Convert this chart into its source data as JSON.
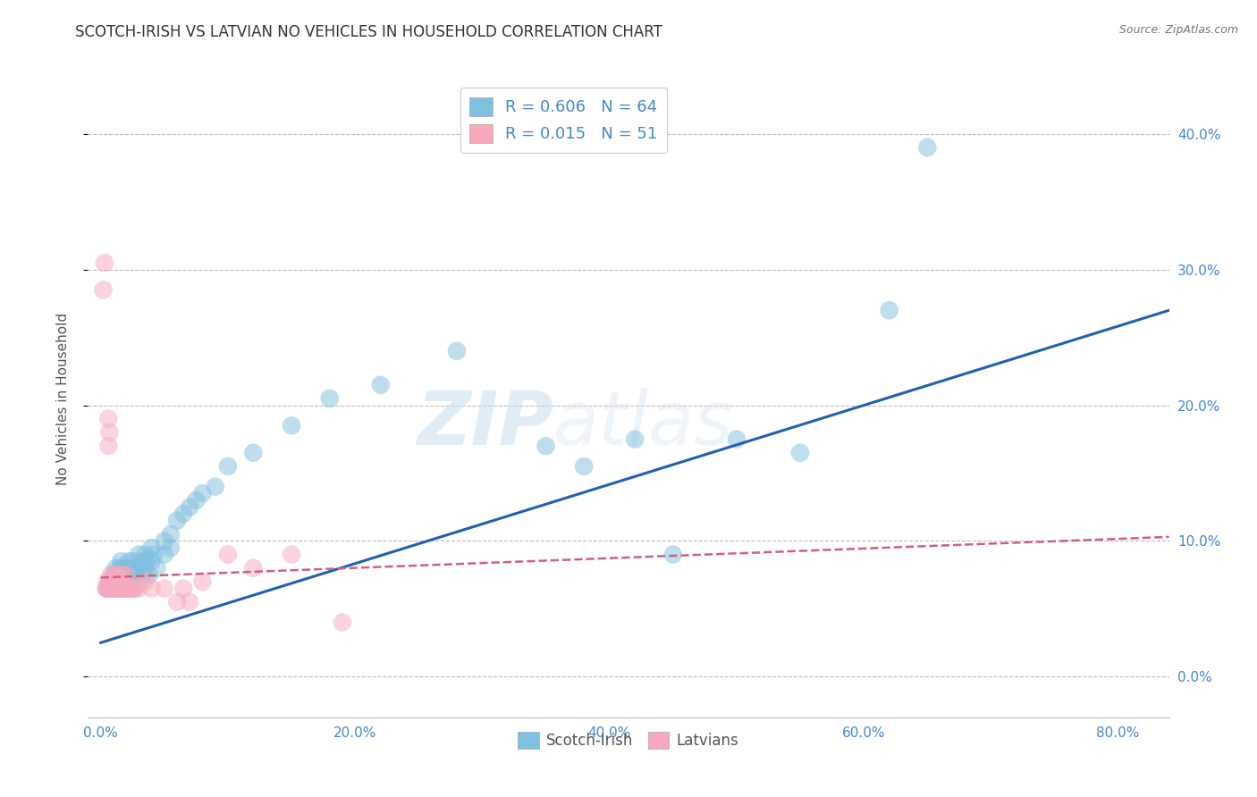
{
  "title": "SCOTCH-IRISH VS LATVIAN NO VEHICLES IN HOUSEHOLD CORRELATION CHART",
  "source": "Source: ZipAtlas.com",
  "xlabel_ticks": [
    "0.0%",
    "20.0%",
    "40.0%",
    "60.0%",
    "80.0%"
  ],
  "ylabel_ticks": [
    "0.0%",
    "10.0%",
    "20.0%",
    "30.0%",
    "40.0%"
  ],
  "xlabel_tick_vals": [
    0.0,
    0.2,
    0.4,
    0.6,
    0.8
  ],
  "ylabel_tick_vals": [
    0.0,
    0.1,
    0.2,
    0.3,
    0.4
  ],
  "xlim": [
    -0.01,
    0.84
  ],
  "ylim": [
    -0.03,
    0.44
  ],
  "ylabel": "No Vehicles in Household",
  "legend_label_blue": "Scotch-Irish",
  "legend_label_pink": "Latvians",
  "R_blue": "0.606",
  "N_blue": "64",
  "R_pink": "0.015",
  "N_pink": "51",
  "blue_color": "#7fbfdf",
  "pink_color": "#f8a8bc",
  "line_blue": "#2060b0",
  "line_pink": "#d06080",
  "watermark_zip": "ZIP",
  "watermark_atlas": "atlas",
  "title_fontsize": 12,
  "axis_label_fontsize": 11,
  "tick_fontsize": 11,
  "tick_color": "#4488cc",
  "blue_scatter": [
    [
      0.005,
      0.065
    ],
    [
      0.008,
      0.07
    ],
    [
      0.01,
      0.075
    ],
    [
      0.01,
      0.065
    ],
    [
      0.012,
      0.08
    ],
    [
      0.012,
      0.07
    ],
    [
      0.013,
      0.075
    ],
    [
      0.014,
      0.065
    ],
    [
      0.015,
      0.08
    ],
    [
      0.015,
      0.07
    ],
    [
      0.015,
      0.065
    ],
    [
      0.016,
      0.085
    ],
    [
      0.017,
      0.075
    ],
    [
      0.018,
      0.08
    ],
    [
      0.018,
      0.07
    ],
    [
      0.019,
      0.065
    ],
    [
      0.02,
      0.075
    ],
    [
      0.02,
      0.065
    ],
    [
      0.021,
      0.08
    ],
    [
      0.022,
      0.085
    ],
    [
      0.022,
      0.07
    ],
    [
      0.023,
      0.075
    ],
    [
      0.024,
      0.07
    ],
    [
      0.025,
      0.085
    ],
    [
      0.025,
      0.075
    ],
    [
      0.026,
      0.065
    ],
    [
      0.027,
      0.08
    ],
    [
      0.028,
      0.075
    ],
    [
      0.03,
      0.09
    ],
    [
      0.03,
      0.08
    ],
    [
      0.032,
      0.085
    ],
    [
      0.033,
      0.075
    ],
    [
      0.035,
      0.09
    ],
    [
      0.035,
      0.08
    ],
    [
      0.036,
      0.085
    ],
    [
      0.038,
      0.075
    ],
    [
      0.04,
      0.095
    ],
    [
      0.04,
      0.085
    ],
    [
      0.042,
      0.09
    ],
    [
      0.044,
      0.08
    ],
    [
      0.05,
      0.1
    ],
    [
      0.05,
      0.09
    ],
    [
      0.055,
      0.105
    ],
    [
      0.055,
      0.095
    ],
    [
      0.06,
      0.115
    ],
    [
      0.065,
      0.12
    ],
    [
      0.07,
      0.125
    ],
    [
      0.075,
      0.13
    ],
    [
      0.08,
      0.135
    ],
    [
      0.09,
      0.14
    ],
    [
      0.1,
      0.155
    ],
    [
      0.12,
      0.165
    ],
    [
      0.15,
      0.185
    ],
    [
      0.18,
      0.205
    ],
    [
      0.22,
      0.215
    ],
    [
      0.28,
      0.24
    ],
    [
      0.35,
      0.17
    ],
    [
      0.38,
      0.155
    ],
    [
      0.42,
      0.175
    ],
    [
      0.45,
      0.09
    ],
    [
      0.5,
      0.175
    ],
    [
      0.55,
      0.165
    ],
    [
      0.62,
      0.27
    ],
    [
      0.65,
      0.39
    ]
  ],
  "pink_scatter": [
    [
      0.002,
      0.285
    ],
    [
      0.003,
      0.305
    ],
    [
      0.004,
      0.065
    ],
    [
      0.005,
      0.07
    ],
    [
      0.005,
      0.065
    ],
    [
      0.006,
      0.19
    ],
    [
      0.006,
      0.17
    ],
    [
      0.007,
      0.07
    ],
    [
      0.007,
      0.065
    ],
    [
      0.007,
      0.18
    ],
    [
      0.008,
      0.065
    ],
    [
      0.008,
      0.075
    ],
    [
      0.009,
      0.065
    ],
    [
      0.009,
      0.07
    ],
    [
      0.01,
      0.065
    ],
    [
      0.01,
      0.075
    ],
    [
      0.011,
      0.07
    ],
    [
      0.011,
      0.065
    ],
    [
      0.012,
      0.07
    ],
    [
      0.012,
      0.065
    ],
    [
      0.013,
      0.075
    ],
    [
      0.013,
      0.065
    ],
    [
      0.014,
      0.07
    ],
    [
      0.014,
      0.065
    ],
    [
      0.015,
      0.075
    ],
    [
      0.015,
      0.065
    ],
    [
      0.016,
      0.07
    ],
    [
      0.016,
      0.065
    ],
    [
      0.017,
      0.075
    ],
    [
      0.017,
      0.065
    ],
    [
      0.018,
      0.07
    ],
    [
      0.019,
      0.065
    ],
    [
      0.02,
      0.075
    ],
    [
      0.02,
      0.065
    ],
    [
      0.021,
      0.065
    ],
    [
      0.022,
      0.065
    ],
    [
      0.023,
      0.065
    ],
    [
      0.025,
      0.065
    ],
    [
      0.027,
      0.065
    ],
    [
      0.03,
      0.065
    ],
    [
      0.035,
      0.07
    ],
    [
      0.04,
      0.065
    ],
    [
      0.05,
      0.065
    ],
    [
      0.06,
      0.055
    ],
    [
      0.065,
      0.065
    ],
    [
      0.07,
      0.055
    ],
    [
      0.08,
      0.07
    ],
    [
      0.1,
      0.09
    ],
    [
      0.12,
      0.08
    ],
    [
      0.15,
      0.09
    ],
    [
      0.19,
      0.04
    ]
  ],
  "blue_line_x": [
    0.0,
    0.84
  ],
  "blue_line_y": [
    0.025,
    0.27
  ],
  "pink_line_x": [
    0.0,
    0.84
  ],
  "pink_line_y": [
    0.073,
    0.103
  ]
}
